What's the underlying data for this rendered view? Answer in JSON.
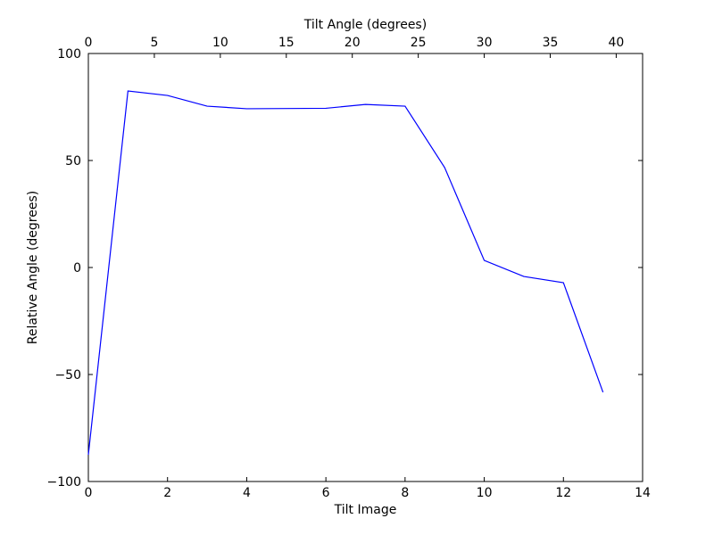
{
  "chart_data": {
    "type": "line",
    "xlabel": "Tilt Image",
    "ylabel": "Relative Angle (degrees)",
    "x2label": "Tilt Angle (degrees)",
    "x": [
      0,
      1,
      2,
      3,
      4,
      5,
      6,
      7,
      8,
      9,
      10,
      11,
      12,
      13
    ],
    "values": [
      -87.5,
      82.5,
      80.4,
      75.4,
      74.2,
      74.3,
      74.4,
      76.2,
      75.4,
      46.7,
      3.3,
      -4.2,
      -7.1,
      -58.3
    ],
    "color": "#0000ff",
    "xlim": [
      0,
      14
    ],
    "xticks": [
      0,
      2,
      4,
      6,
      8,
      10,
      12,
      14
    ],
    "x2lim": [
      0,
      42
    ],
    "x2ticks": [
      0,
      5,
      10,
      15,
      20,
      25,
      30,
      35,
      40
    ],
    "ylim": [
      -100,
      100
    ],
    "yticks": [
      {
        "value": -100,
        "label": "−100"
      },
      {
        "value": -50,
        "label": "−50"
      },
      0,
      50,
      100
    ],
    "grid": false
  }
}
